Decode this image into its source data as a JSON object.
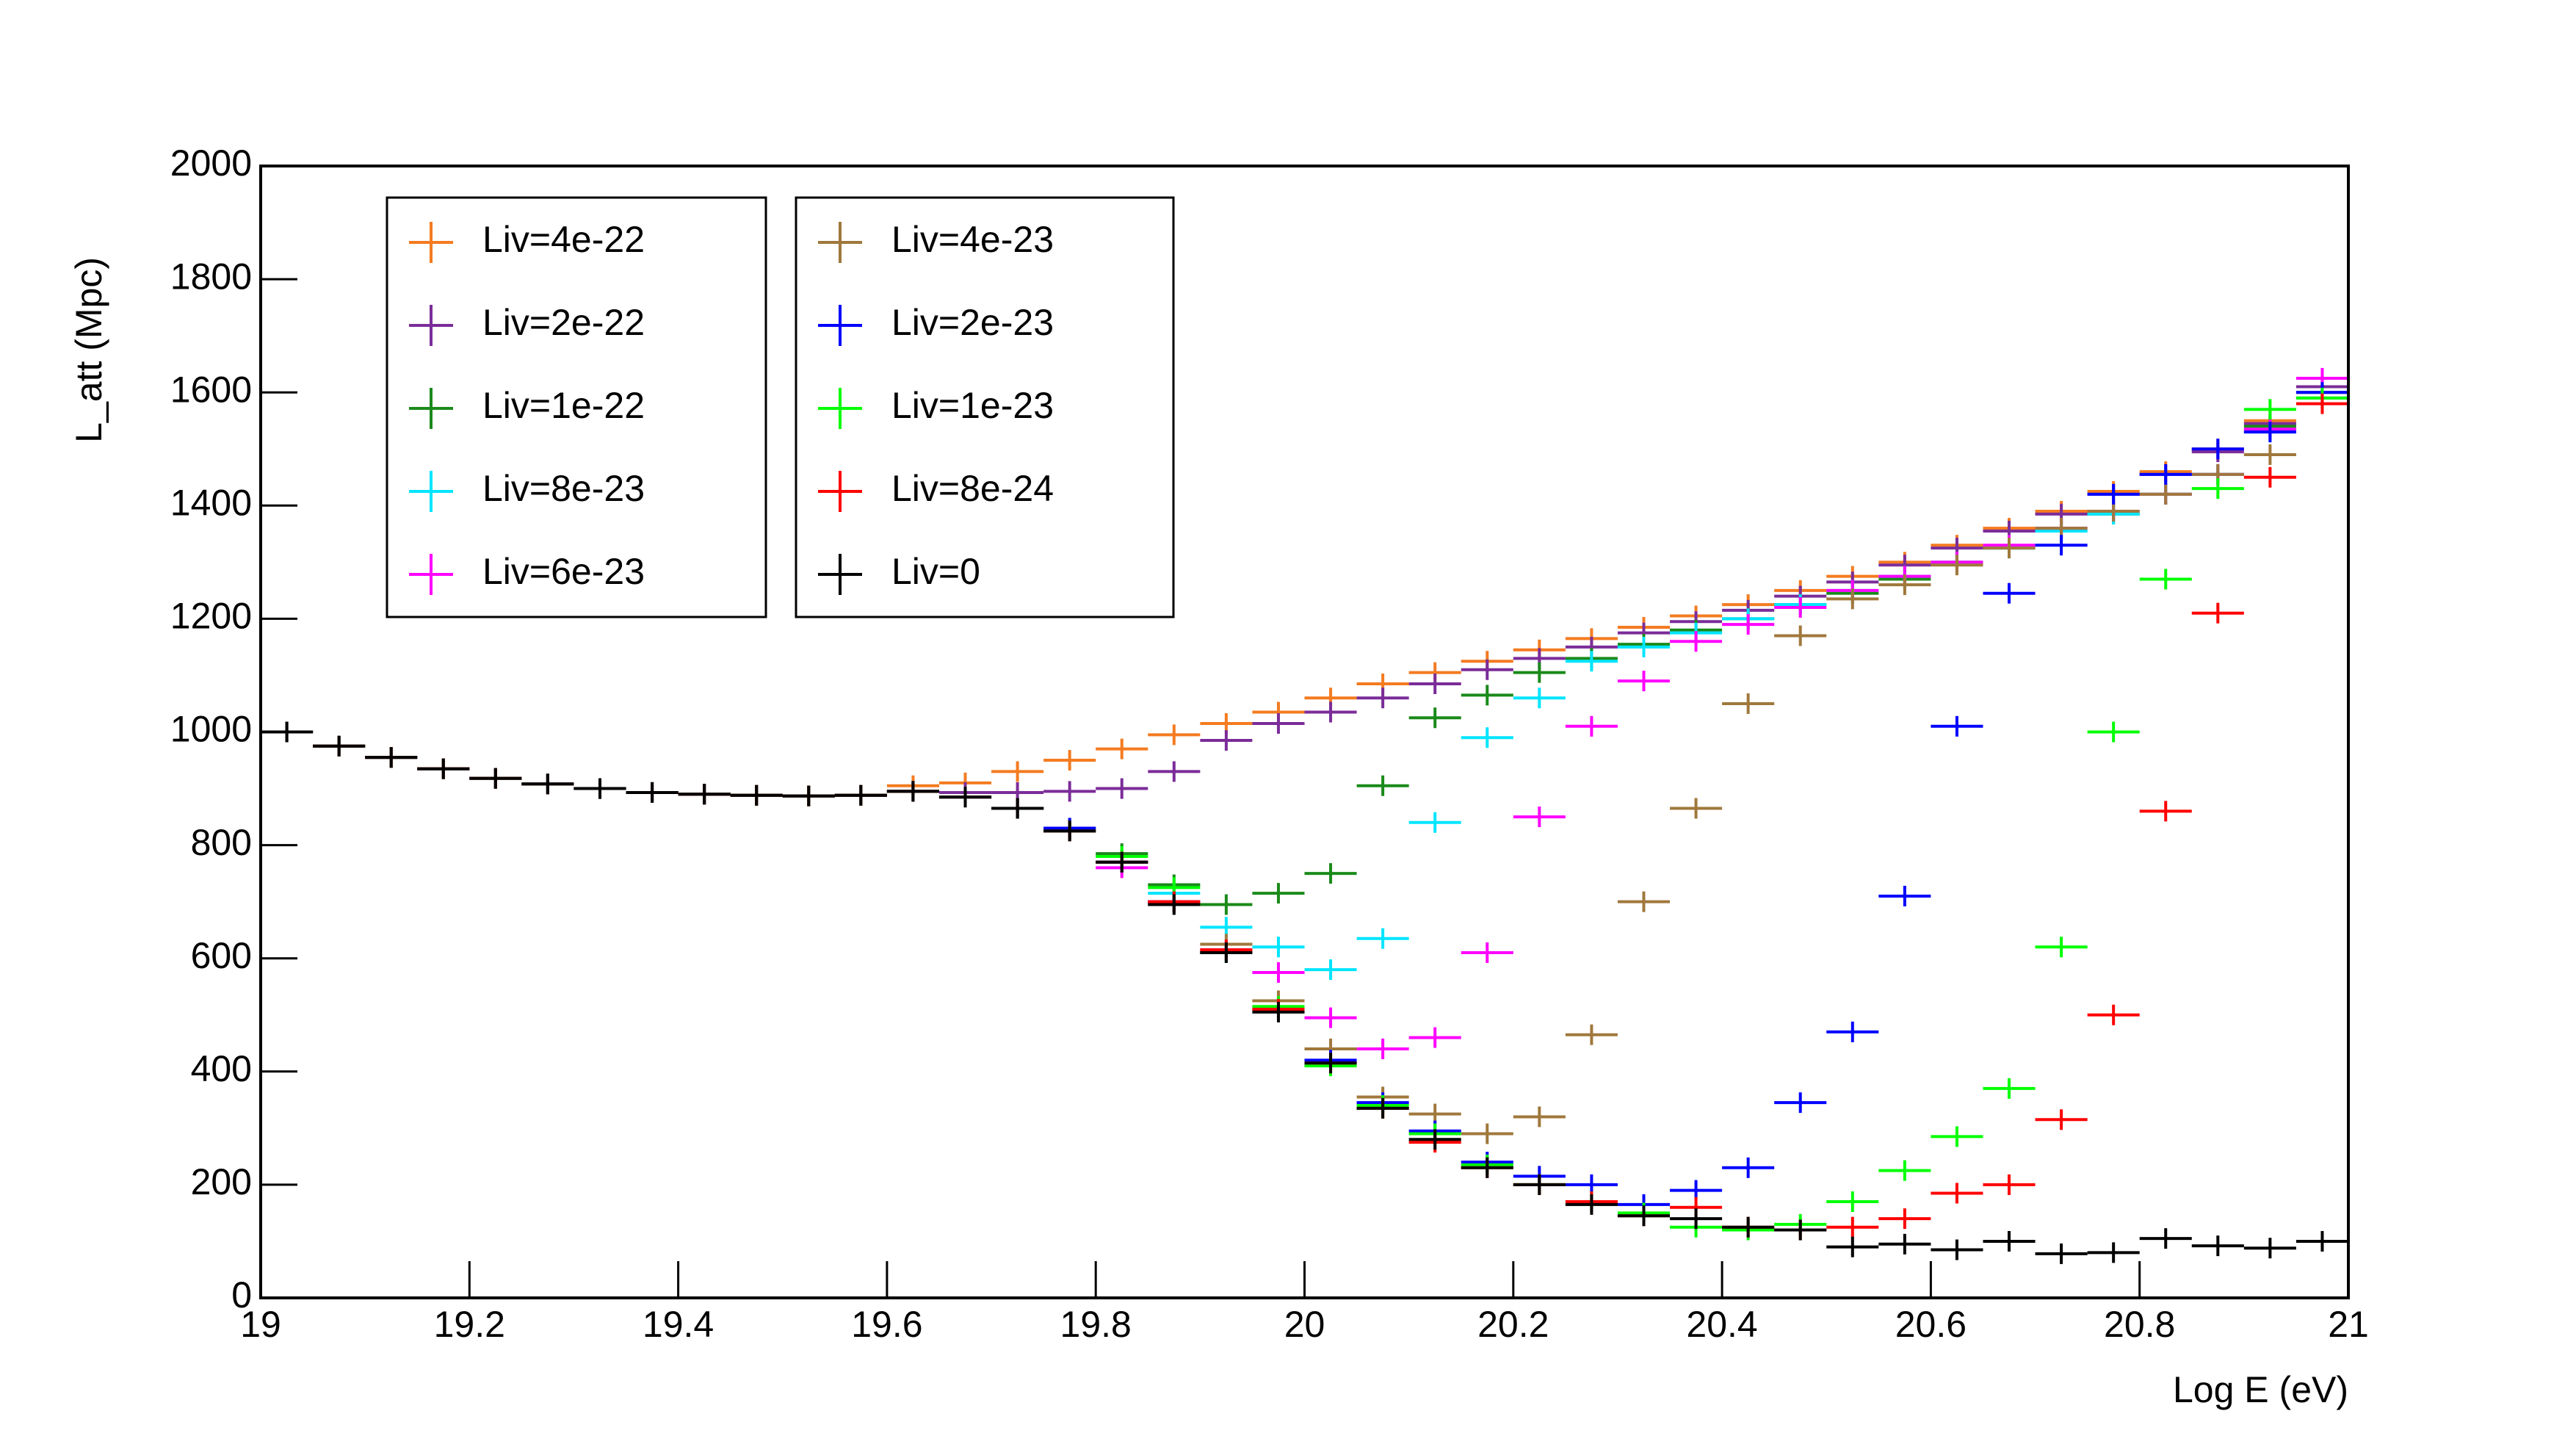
{
  "chart_data": {
    "type": "scatter",
    "ylabel": "L_att (Mpc)",
    "xlabel": "Log E (eV)",
    "xlim": [
      19,
      21
    ],
    "xticks": [
      19,
      19.2,
      19.4,
      19.6,
      19.8,
      20,
      20.2,
      20.4,
      20.6,
      20.8,
      21
    ],
    "ylim": [
      0,
      2000
    ],
    "yticks": [
      0,
      200,
      400,
      600,
      800,
      1000,
      1200,
      1400,
      1600,
      1800,
      2000
    ],
    "x": [
      19.025,
      19.075,
      19.125,
      19.175,
      19.225,
      19.275,
      19.325,
      19.375,
      19.425,
      19.475,
      19.525,
      19.575,
      19.625,
      19.675,
      19.725,
      19.775,
      19.825,
      19.875,
      19.925,
      19.975,
      20.025,
      20.075,
      20.125,
      20.175,
      20.225,
      20.275,
      20.325,
      20.375,
      20.425,
      20.475,
      20.525,
      20.575,
      20.625,
      20.675,
      20.725,
      20.775,
      20.825,
      20.875,
      20.925,
      20.975
    ],
    "series": [
      {
        "name": "Liv=4e-22",
        "color": "#f47b20",
        "values": [
          1000,
          975,
          955,
          935,
          918,
          908,
          900,
          893,
          890,
          888,
          887,
          888,
          905,
          910,
          930,
          950,
          970,
          995,
          1015,
          1035,
          1060,
          1085,
          1105,
          1125,
          1145,
          1165,
          1185,
          1205,
          1225,
          1250,
          1275,
          1300,
          1330,
          1360,
          1390,
          1425,
          1460,
          1500,
          1550,
          1610
        ]
      },
      {
        "name": "Liv=2e-22",
        "color": "#7b2c99",
        "values": [
          1000,
          975,
          955,
          935,
          918,
          908,
          900,
          893,
          890,
          888,
          887,
          888,
          895,
          893,
          893,
          895,
          900,
          930,
          985,
          1015,
          1035,
          1060,
          1085,
          1110,
          1130,
          1150,
          1175,
          1195,
          1215,
          1240,
          1265,
          1295,
          1325,
          1355,
          1385,
          1420,
          1455,
          1495,
          1545,
          1610
        ]
      },
      {
        "name": "Liv=1e-22",
        "color": "#1a8a1a",
        "values": [
          1000,
          975,
          955,
          935,
          918,
          908,
          900,
          893,
          890,
          888,
          887,
          888,
          895,
          885,
          865,
          830,
          785,
          730,
          695,
          715,
          750,
          905,
          1025,
          1065,
          1105,
          1130,
          1155,
          1180,
          1200,
          1225,
          1245,
          1270,
          1300,
          1325,
          1355,
          1385,
          1420,
          1455,
          1540,
          1600
        ]
      },
      {
        "name": "Liv=8e-23",
        "color": "#00e5ff",
        "values": [
          1000,
          975,
          955,
          935,
          918,
          908,
          900,
          893,
          890,
          888,
          887,
          888,
          895,
          885,
          865,
          825,
          770,
          715,
          655,
          620,
          580,
          635,
          840,
          990,
          1060,
          1125,
          1150,
          1175,
          1200,
          1225,
          1250,
          1275,
          1300,
          1325,
          1355,
          1385,
          1420,
          1455,
          1530,
          1590
        ]
      },
      {
        "name": "Liv=6e-23",
        "color": "#ff00ff",
        "values": [
          1000,
          975,
          955,
          935,
          918,
          908,
          900,
          893,
          890,
          888,
          887,
          888,
          895,
          885,
          865,
          825,
          760,
          700,
          615,
          575,
          495,
          440,
          460,
          610,
          850,
          1010,
          1090,
          1160,
          1190,
          1220,
          1250,
          1275,
          1300,
          1330,
          1360,
          1390,
          1420,
          1455,
          1535,
          1625
        ]
      },
      {
        "name": "Liv=4e-23",
        "color": "#a0783c",
        "values": [
          1000,
          975,
          955,
          935,
          918,
          908,
          900,
          893,
          890,
          888,
          887,
          888,
          895,
          885,
          865,
          830,
          770,
          695,
          625,
          525,
          440,
          355,
          325,
          290,
          320,
          465,
          700,
          865,
          1050,
          1170,
          1235,
          1260,
          1295,
          1325,
          1360,
          1390,
          1420,
          1455,
          1490,
          1590
        ]
      },
      {
        "name": "Liv=2e-23",
        "color": "#0000ff",
        "values": [
          1000,
          975,
          955,
          935,
          918,
          908,
          900,
          893,
          890,
          888,
          887,
          888,
          895,
          885,
          865,
          830,
          770,
          700,
          610,
          510,
          420,
          345,
          295,
          240,
          215,
          200,
          165,
          190,
          230,
          345,
          470,
          710,
          1010,
          1245,
          1330,
          1420,
          1455,
          1500,
          1530,
          1600
        ]
      },
      {
        "name": "Liv=1e-23",
        "color": "#00ff00",
        "values": [
          1000,
          975,
          955,
          935,
          918,
          908,
          900,
          893,
          890,
          888,
          887,
          888,
          895,
          885,
          865,
          825,
          780,
          725,
          610,
          515,
          410,
          340,
          290,
          235,
          200,
          170,
          150,
          125,
          120,
          130,
          170,
          225,
          285,
          370,
          620,
          1000,
          1270,
          1430,
          1570,
          1590
        ]
      },
      {
        "name": "Liv=8e-24",
        "color": "#ff0000",
        "values": [
          1000,
          975,
          955,
          935,
          918,
          908,
          900,
          893,
          890,
          888,
          887,
          888,
          895,
          885,
          865,
          825,
          770,
          700,
          615,
          510,
          415,
          335,
          275,
          230,
          200,
          170,
          145,
          160,
          125,
          120,
          125,
          140,
          185,
          200,
          315,
          500,
          860,
          1210,
          1450,
          1580
        ]
      },
      {
        "name": "Liv=0",
        "color": "#000000",
        "values": [
          1000,
          975,
          955,
          935,
          918,
          908,
          900,
          893,
          890,
          888,
          887,
          888,
          895,
          885,
          865,
          825,
          770,
          695,
          610,
          505,
          415,
          335,
          280,
          230,
          200,
          165,
          145,
          140,
          125,
          120,
          90,
          95,
          85,
          100,
          78,
          80,
          105,
          92,
          88,
          100
        ]
      }
    ]
  }
}
